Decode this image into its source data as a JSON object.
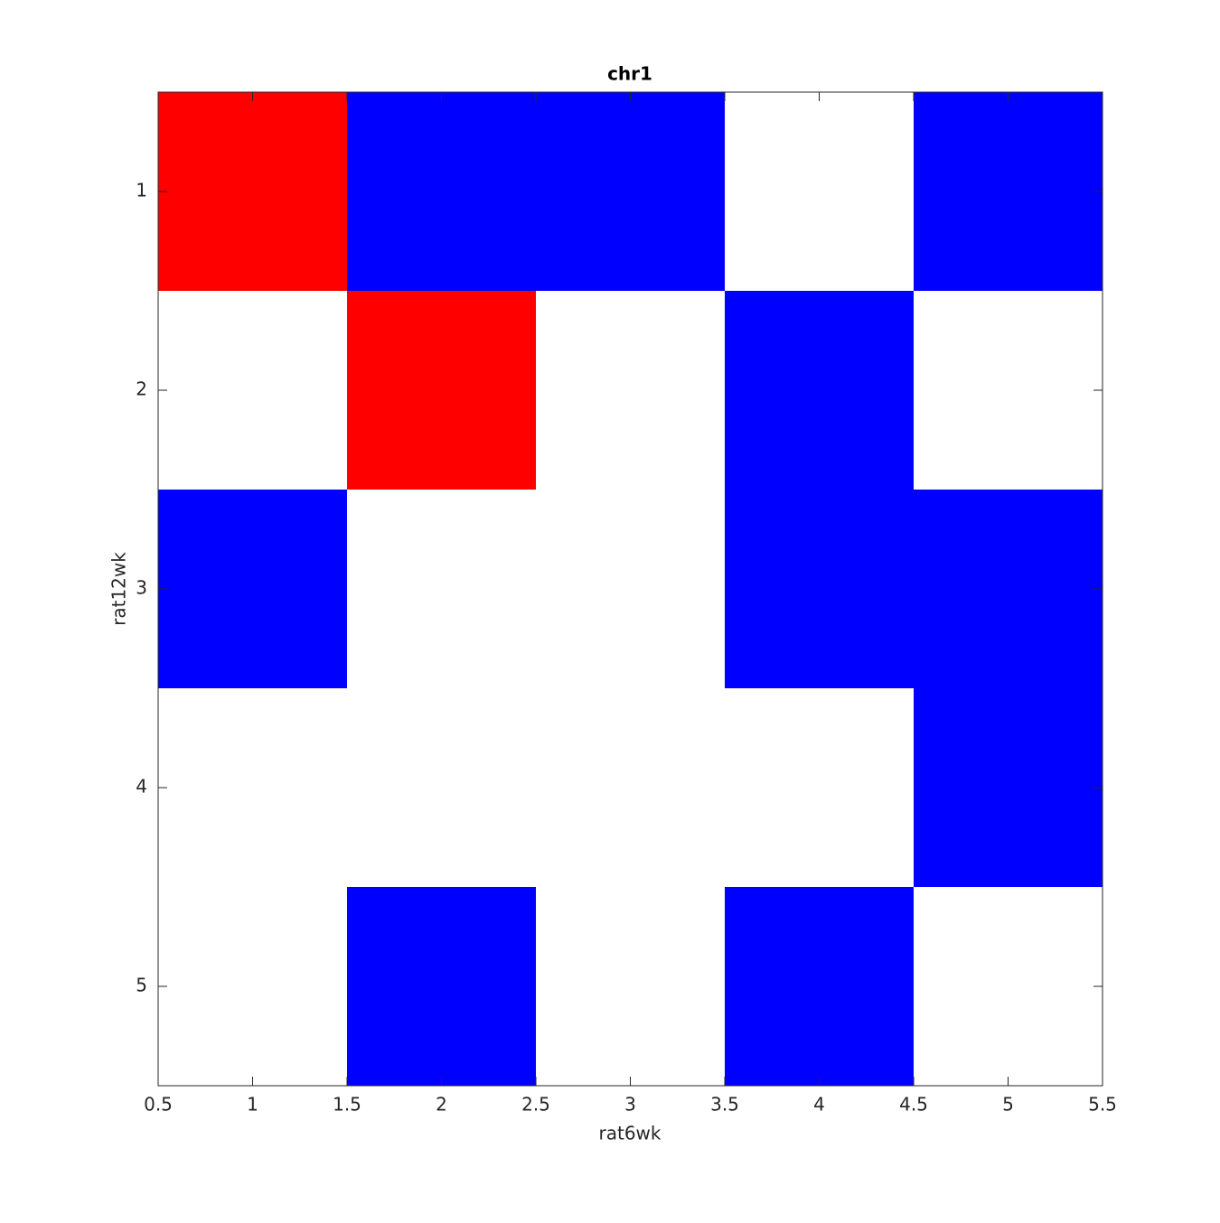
{
  "chart_data": {
    "type": "heatmap",
    "title": "chr1",
    "x_label": "rat6wk",
    "y_label": "rat12wk",
    "x": [
      1,
      2,
      3,
      4,
      5
    ],
    "y": [
      1,
      2,
      3,
      4,
      5
    ],
    "values": [
      [
        1,
        -1,
        -1,
        0,
        -1
      ],
      [
        0,
        1,
        0,
        -1,
        0
      ],
      [
        -1,
        0,
        0,
        -1,
        -1
      ],
      [
        0,
        0,
        0,
        0,
        -1
      ],
      [
        0,
        -1,
        0,
        -1,
        0
      ]
    ],
    "clim": [
      -1,
      1
    ],
    "colors": [
      "#0000ff",
      "#ffffff",
      "#ff0000"
    ],
    "xlim": [
      0.5,
      5.5
    ],
    "xticks": [
      0.5,
      1,
      1.5,
      2,
      2.5,
      3,
      3.5,
      4,
      4.5,
      5,
      5.5
    ],
    "ylim": [
      0.5,
      5.5
    ],
    "yticks": [
      1,
      2,
      3,
      4,
      5
    ],
    "y_reversed": true
  }
}
